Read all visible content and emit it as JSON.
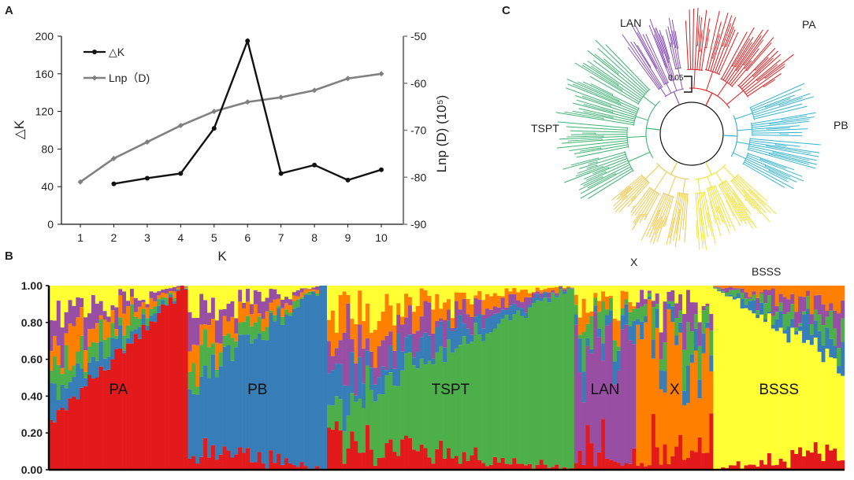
{
  "panels": {
    "a": "A",
    "b": "B",
    "c": "C"
  },
  "chart_data": [
    {
      "type": "line",
      "panel": "A",
      "x": [
        1,
        2,
        3,
        4,
        5,
        6,
        7,
        8,
        9,
        10
      ],
      "xlabel": "K",
      "xlim": [
        1,
        10
      ],
      "series": [
        {
          "name": "△K",
          "axis": "left",
          "color": "#111111",
          "values": [
            null,
            43,
            49,
            54,
            102,
            195,
            54,
            63,
            47,
            58
          ]
        },
        {
          "name": "Lnp（D)",
          "axis": "right",
          "color": "#808080",
          "values": [
            -81,
            -76,
            -72.5,
            -69,
            -66,
            -64,
            -63,
            -61.5,
            -59,
            -58
          ]
        }
      ],
      "ylabel_left": "△K",
      "ylabel_right": "Lnp (D) (10⁵)",
      "ylim_left": [
        0,
        200
      ],
      "ylim_right": [
        -90,
        -50
      ],
      "yticks_left": [
        "0",
        "40",
        "80",
        "120",
        "160",
        "200"
      ],
      "yticks_right": [
        "-90",
        "-80",
        "-70",
        "-60",
        "-50"
      ],
      "xticks": [
        "1",
        "2",
        "3",
        "4",
        "5",
        "6",
        "7",
        "8",
        "9",
        "10"
      ],
      "legend": "top-left"
    },
    {
      "type": "bar",
      "subtype": "stacked-structure",
      "panel": "B",
      "ylim": [
        0,
        1
      ],
      "yticks": [
        "0.00",
        "0.20",
        "0.40",
        "0.60",
        "0.80",
        "1.00"
      ],
      "colors": {
        "red": "#e31a1c",
        "blue": "#377eb8",
        "green": "#4daf4a",
        "purple": "#984ea3",
        "orange": "#ff7f00",
        "yellow": "#ffff33"
      },
      "groups": [
        {
          "name": "PA",
          "count": 36,
          "main": "red",
          "main_range": [
            0.27,
            1.0
          ],
          "others": [
            "blue",
            "green",
            "orange",
            "purple",
            "yellow"
          ]
        },
        {
          "name": "PB",
          "count": 36,
          "main": "blue",
          "main_range": [
            0.35,
            1.0
          ],
          "others": [
            "red",
            "green",
            "orange",
            "purple",
            "yellow"
          ]
        },
        {
          "name": "TSPT",
          "count": 64,
          "main": "green",
          "main_range": [
            0.15,
            1.0
          ],
          "others": [
            "red",
            "blue",
            "purple",
            "orange",
            "yellow"
          ]
        },
        {
          "name": "LAN",
          "count": 16,
          "main": "purple",
          "main_range": [
            0.3,
            0.85
          ],
          "others": [
            "red",
            "blue",
            "green",
            "orange",
            "yellow"
          ]
        },
        {
          "name": "X",
          "count": 20,
          "main": "orange",
          "main_range": [
            0.2,
            0.95
          ],
          "others": [
            "red",
            "blue",
            "green",
            "purple",
            "yellow"
          ]
        },
        {
          "name": "BSSS",
          "count": 34,
          "main": "yellow",
          "main_range": [
            0.4,
            0.98
          ],
          "others": [
            "red",
            "blue",
            "green",
            "purple",
            "orange"
          ]
        }
      ]
    }
  ],
  "tree": {
    "scale_label": "0.05",
    "clades": [
      {
        "name": "PA",
        "color": "#e31a1c"
      },
      {
        "name": "PB",
        "color": "#33b4d0"
      },
      {
        "name": "BSSS",
        "color": "#f1e235"
      },
      {
        "name": "X",
        "color": "#f0c84b"
      },
      {
        "name": "TSPT",
        "color": "#3cb371"
      },
      {
        "name": "LAN",
        "color": "#8a52b5"
      }
    ]
  }
}
